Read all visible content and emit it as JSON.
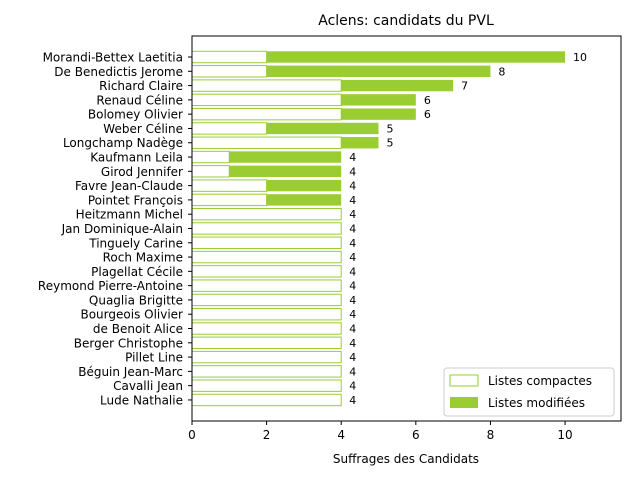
{
  "chart_data": {
    "type": "bar",
    "orientation": "horizontal",
    "stacked": true,
    "title": "Aclens: candidats du PVL",
    "xlabel": "Suffrages des Candidats",
    "ylabel": "",
    "xlim": [
      0,
      11.5
    ],
    "xticks": [
      0,
      2,
      4,
      6,
      8,
      10
    ],
    "grid": false,
    "legend_position": "lower-right",
    "colors": {
      "accent": "#9ACD32",
      "compact_fill": "#ffffff",
      "compact_edge": "#9ACD32"
    },
    "categories": [
      "Morandi-Bettex Laetitia",
      "De Benedictis Jerome",
      "Richard Claire",
      "Renaud Céline",
      "Bolomey Olivier",
      "Weber Céline",
      "Longchamp Nadège",
      "Kaufmann Leila",
      "Girod Jennifer",
      "Favre Jean-Claude",
      "Pointet François",
      "Heitzmann Michel",
      "Jan Dominique-Alain",
      "Tinguely Carine",
      "Roch Maxime",
      "Plagellat Cécile",
      "Reymond Pierre-Antoine",
      "Quaglia Brigitte",
      "Bourgeois Olivier",
      "de Benoit Alice",
      "Berger Christophe",
      "Pillet Line",
      "Béguin Jean-Marc",
      "Cavalli Jean",
      "Lude Nathalie"
    ],
    "series": [
      {
        "name": "Listes compactes",
        "values": [
          2,
          2,
          4,
          4,
          4,
          2,
          4,
          1,
          1,
          2,
          2,
          4,
          4,
          4,
          4,
          4,
          4,
          4,
          4,
          4,
          4,
          4,
          4,
          4,
          4
        ]
      },
      {
        "name": "Listes modifiées",
        "values": [
          8,
          6,
          3,
          2,
          2,
          3,
          1,
          3,
          3,
          2,
          2,
          0,
          0,
          0,
          0,
          0,
          0,
          0,
          0,
          0,
          0,
          0,
          0,
          0,
          0
        ]
      }
    ],
    "totals": [
      10,
      8,
      7,
      6,
      6,
      5,
      5,
      4,
      4,
      4,
      4,
      4,
      4,
      4,
      4,
      4,
      4,
      4,
      4,
      4,
      4,
      4,
      4,
      4,
      4
    ]
  }
}
